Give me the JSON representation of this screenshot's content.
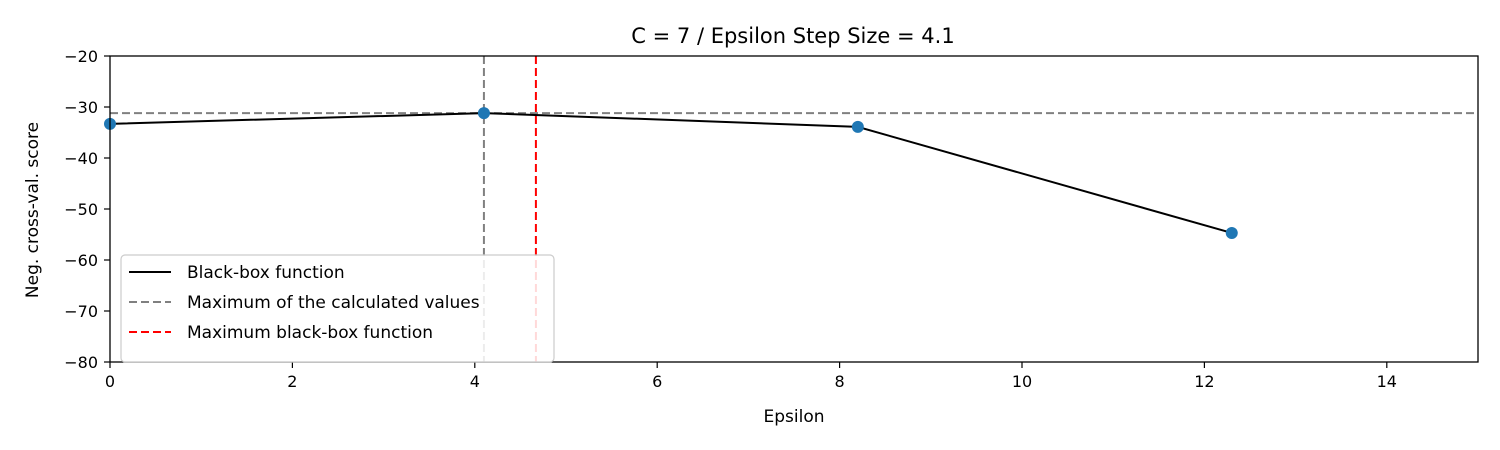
{
  "chart_data": {
    "type": "line",
    "title": "C = 7 / Epsilon Step Size = 4.1",
    "xlabel": "Epsilon",
    "ylabel": "Neg. cross-val. score",
    "xlim": [
      0,
      15
    ],
    "ylim": [
      -80,
      -20
    ],
    "xticks": [
      0,
      2,
      4,
      6,
      8,
      10,
      12,
      14
    ],
    "yticks": [
      -80,
      -70,
      -60,
      -50,
      -40,
      -30,
      -20
    ],
    "grid": false,
    "legend_position": "lower-left",
    "series": [
      {
        "name": "Black-box function",
        "kind": "line",
        "color": "#000000",
        "style": "solid",
        "x": [
          0,
          4.1,
          8.2,
          12.3
        ],
        "y": [
          -33.3,
          -31.2,
          -33.9,
          -54.7
        ]
      }
    ],
    "points": {
      "color": "#1f77b4",
      "x": [
        0,
        4.1,
        8.2,
        12.3
      ],
      "y": [
        -33.3,
        -31.2,
        -33.9,
        -54.7
      ]
    },
    "reference_lines": [
      {
        "name": "Maximum of the calculated values",
        "color": "#808080",
        "style": "dashed",
        "horizontal_y": -31.2,
        "vertical_x": 4.1
      },
      {
        "name": "Maximum black-box function",
        "color": "#ff0000",
        "style": "dashed",
        "vertical_x": 4.67
      }
    ]
  }
}
